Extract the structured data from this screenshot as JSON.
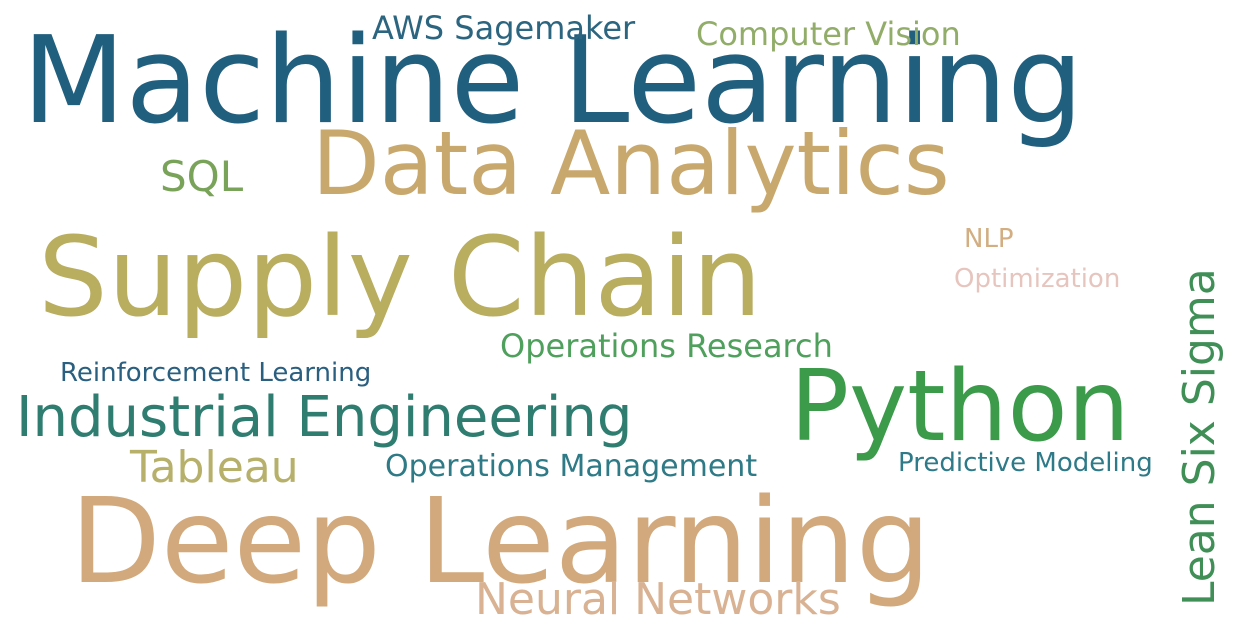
{
  "words": {
    "machine_learning": {
      "text": "Machine Learning",
      "color": "#215f7e"
    },
    "data_analytics": {
      "text": "Data Analytics",
      "color": "#c9a86e"
    },
    "supply_chain": {
      "text": "Supply Chain",
      "color": "#b9ad60"
    },
    "python": {
      "text": "Python",
      "color": "#3c9a4b"
    },
    "deep_learning": {
      "text": "Deep Learning",
      "color": "#d2a97c"
    },
    "industrial_engineering": {
      "text": "Industrial Engineering",
      "color": "#2e7d70"
    },
    "neural_networks": {
      "text": "Neural Networks",
      "color": "#d8b292"
    },
    "lean_six_sigma": {
      "text": "Lean Six Sigma",
      "color": "#3f8f57"
    },
    "operations_research": {
      "text": "Operations Research",
      "color": "#4f9f5d"
    },
    "operations_management": {
      "text": "Operations Management",
      "color": "#2e7a86"
    },
    "predictive_modeling": {
      "text": "Predictive Modeling",
      "color": "#2f7a88"
    },
    "reinforcement_learning": {
      "text": "Reinforcement Learning",
      "color": "#2a5f80"
    },
    "tableau": {
      "text": "Tableau",
      "color": "#b7b06b"
    },
    "sql": {
      "text": "SQL",
      "color": "#7aa35a"
    },
    "aws_sagemaker": {
      "text": "AWS Sagemaker",
      "color": "#2c657f"
    },
    "computer_vision": {
      "text": "Computer Vision",
      "color": "#92ad6a"
    },
    "nlp": {
      "text": "NLP",
      "color": "#d2ae82"
    },
    "optimization": {
      "text": "Optimization",
      "color": "#e7c5bf"
    }
  }
}
